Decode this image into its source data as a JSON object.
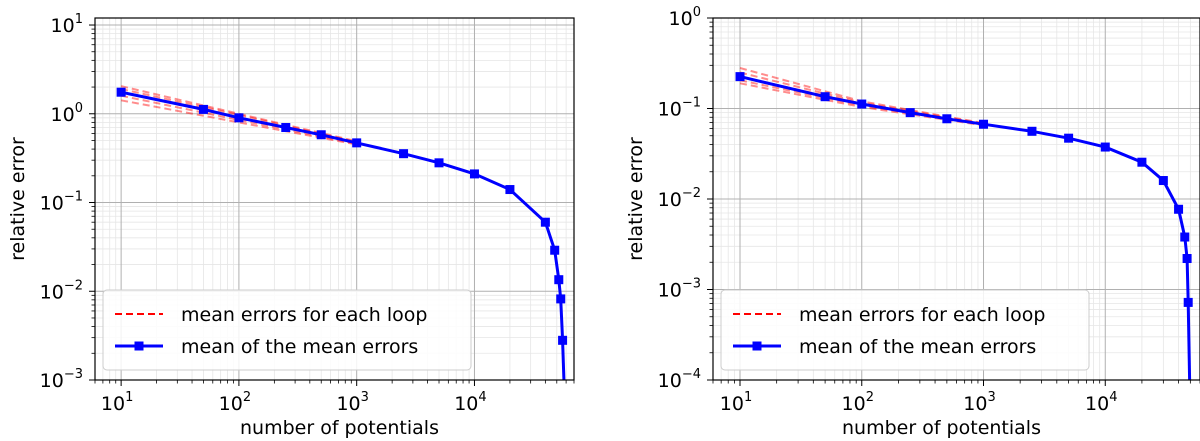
{
  "chart_data": [
    {
      "type": "line",
      "xlabel": "number of potentials",
      "ylabel": "relative error",
      "xscale": "log",
      "yscale": "log",
      "xlim": [
        6,
        70000
      ],
      "ylim": [
        0.001,
        12
      ],
      "x_ticks": [
        {
          "base": "10",
          "exp": "1",
          "value": 10
        },
        {
          "base": "10",
          "exp": "2",
          "value": 100
        },
        {
          "base": "10",
          "exp": "3",
          "value": 1000
        },
        {
          "base": "10",
          "exp": "4",
          "value": 10000
        }
      ],
      "y_ticks": [
        {
          "base": "10",
          "exp": "−3",
          "value": 0.001
        },
        {
          "base": "10",
          "exp": "−2",
          "value": 0.01
        },
        {
          "base": "10",
          "exp": "−1",
          "value": 0.1
        },
        {
          "base": "10",
          "exp": "0",
          "value": 1
        },
        {
          "base": "10",
          "exp": "1",
          "value": 10
        }
      ],
      "grid": true,
      "legend_position": "lower-left",
      "series": [
        {
          "name": "mean of the mean errors",
          "style": "solid-with-square-markers",
          "color": "#0000ff",
          "x": [
            10,
            50,
            100,
            250,
            500,
            1000,
            2500,
            5000,
            10000,
            20000,
            40000,
            48000,
            52000,
            54000,
            56000
          ],
          "values": [
            1.75,
            1.12,
            0.9,
            0.7,
            0.58,
            0.47,
            0.355,
            0.28,
            0.21,
            0.14,
            0.06,
            0.029,
            0.0135,
            0.0082,
            0.0028
          ]
        },
        {
          "name": "mean errors for each loop",
          "style": "dashed",
          "color": "#ff0000",
          "loops": [
            {
              "x": [
                10,
                100,
                1000
              ],
              "values": [
                2.05,
                1.0,
                0.49
              ]
            },
            {
              "x": [
                10,
                100,
                1000
              ],
              "values": [
                1.9,
                0.97,
                0.48
              ]
            },
            {
              "x": [
                10,
                100,
                1000
              ],
              "values": [
                1.75,
                0.9,
                0.47
              ]
            },
            {
              "x": [
                10,
                100,
                1000
              ],
              "values": [
                1.6,
                0.85,
                0.46
              ]
            },
            {
              "x": [
                10,
                100,
                1000
              ],
              "values": [
                1.42,
                0.8,
                0.45
              ]
            }
          ]
        }
      ]
    },
    {
      "type": "line",
      "xlabel": "number of potentials",
      "ylabel": "relative error",
      "xscale": "log",
      "yscale": "log",
      "xlim": [
        6,
        60000
      ],
      "ylim": [
        0.0001,
        1.0
      ],
      "x_ticks": [
        {
          "base": "10",
          "exp": "1",
          "value": 10
        },
        {
          "base": "10",
          "exp": "2",
          "value": 100
        },
        {
          "base": "10",
          "exp": "3",
          "value": 1000
        },
        {
          "base": "10",
          "exp": "4",
          "value": 10000
        }
      ],
      "y_ticks": [
        {
          "base": "10",
          "exp": "−4",
          "value": 0.0001
        },
        {
          "base": "10",
          "exp": "−3",
          "value": 0.001
        },
        {
          "base": "10",
          "exp": "−2",
          "value": 0.01
        },
        {
          "base": "10",
          "exp": "−1",
          "value": 0.1
        },
        {
          "base": "10",
          "exp": "0",
          "value": 1
        }
      ],
      "grid": true,
      "legend_position": "lower-left",
      "series": [
        {
          "name": "mean of the mean errors",
          "style": "solid-with-square-markers",
          "color": "#0000ff",
          "x": [
            10,
            50,
            100,
            250,
            500,
            1000,
            2500,
            5000,
            10000,
            20000,
            30000,
            40000,
            45000,
            47000,
            48000
          ],
          "values": [
            0.225,
            0.135,
            0.112,
            0.09,
            0.077,
            0.067,
            0.056,
            0.047,
            0.0375,
            0.0255,
            0.016,
            0.0077,
            0.0038,
            0.0022,
            0.00072
          ]
        },
        {
          "name": "mean errors for each loop",
          "style": "dashed",
          "color": "#ff0000",
          "loops": [
            {
              "x": [
                10,
                100,
                1000
              ],
              "values": [
                0.28,
                0.12,
                0.069
              ]
            },
            {
              "x": [
                10,
                100,
                1000
              ],
              "values": [
                0.25,
                0.116,
                0.068
              ]
            },
            {
              "x": [
                10,
                100,
                1000
              ],
              "values": [
                0.225,
                0.112,
                0.067
              ]
            },
            {
              "x": [
                10,
                100,
                1000
              ],
              "values": [
                0.205,
                0.108,
                0.066
              ]
            },
            {
              "x": [
                10,
                100,
                1000
              ],
              "values": [
                0.19,
                0.104,
                0.065
              ]
            }
          ]
        }
      ]
    }
  ]
}
